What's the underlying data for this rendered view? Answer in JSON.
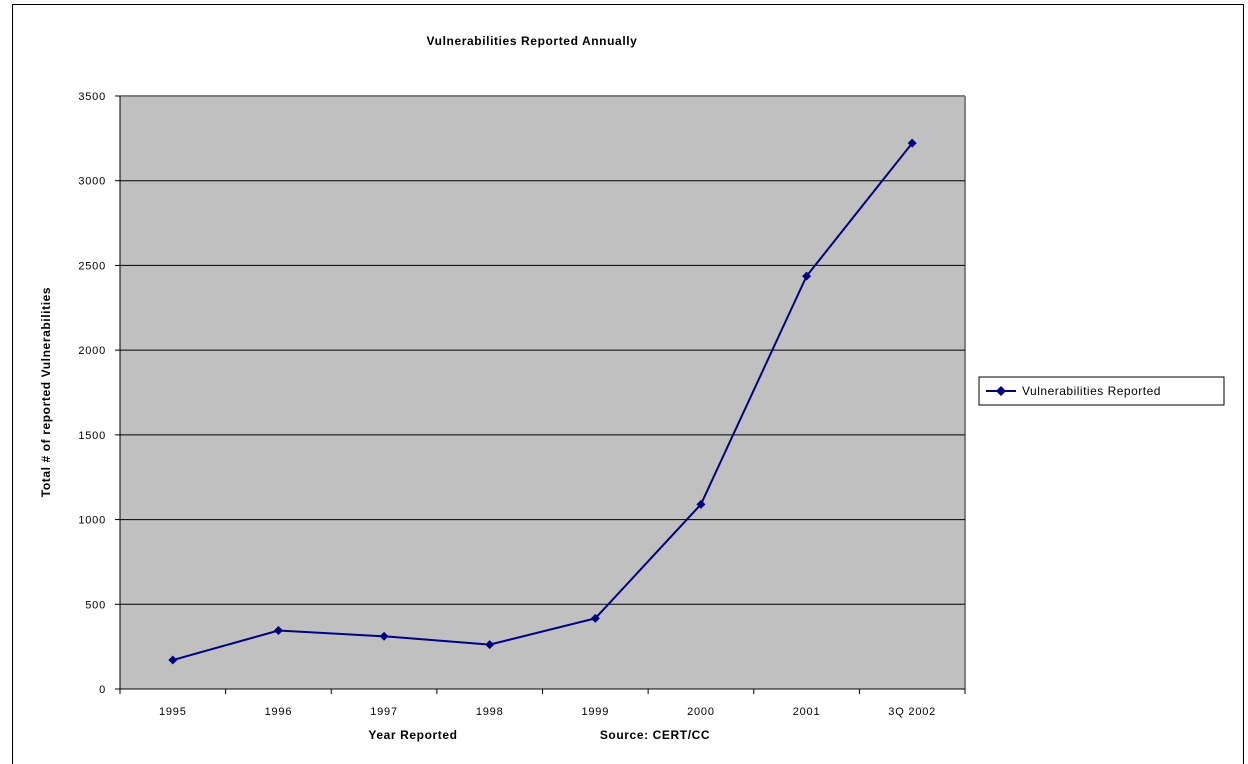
{
  "chart_data": {
    "type": "line",
    "title": "Vulnerabilities Reported Annually",
    "xlabel": "Year Reported",
    "ylabel": "Total # of reported Vulnerabilities",
    "source_note": "Source: CERT/CC",
    "categories": [
      "1995",
      "1996",
      "1997",
      "1998",
      "1999",
      "2000",
      "2001",
      "3Q 2002"
    ],
    "series": [
      {
        "name": "Vulnerabilities Reported",
        "values": [
          171,
          345,
          311,
          262,
          417,
          1090,
          2437,
          3222
        ]
      }
    ],
    "ylim": [
      0,
      3500
    ],
    "yticks": [
      0,
      500,
      1000,
      1500,
      2000,
      2500,
      3000,
      3500
    ],
    "grid": true,
    "legend_position": "right",
    "colors": {
      "series_line": "#000080",
      "plot_background": "#c0c0c0",
      "gridline": "#000000"
    }
  }
}
